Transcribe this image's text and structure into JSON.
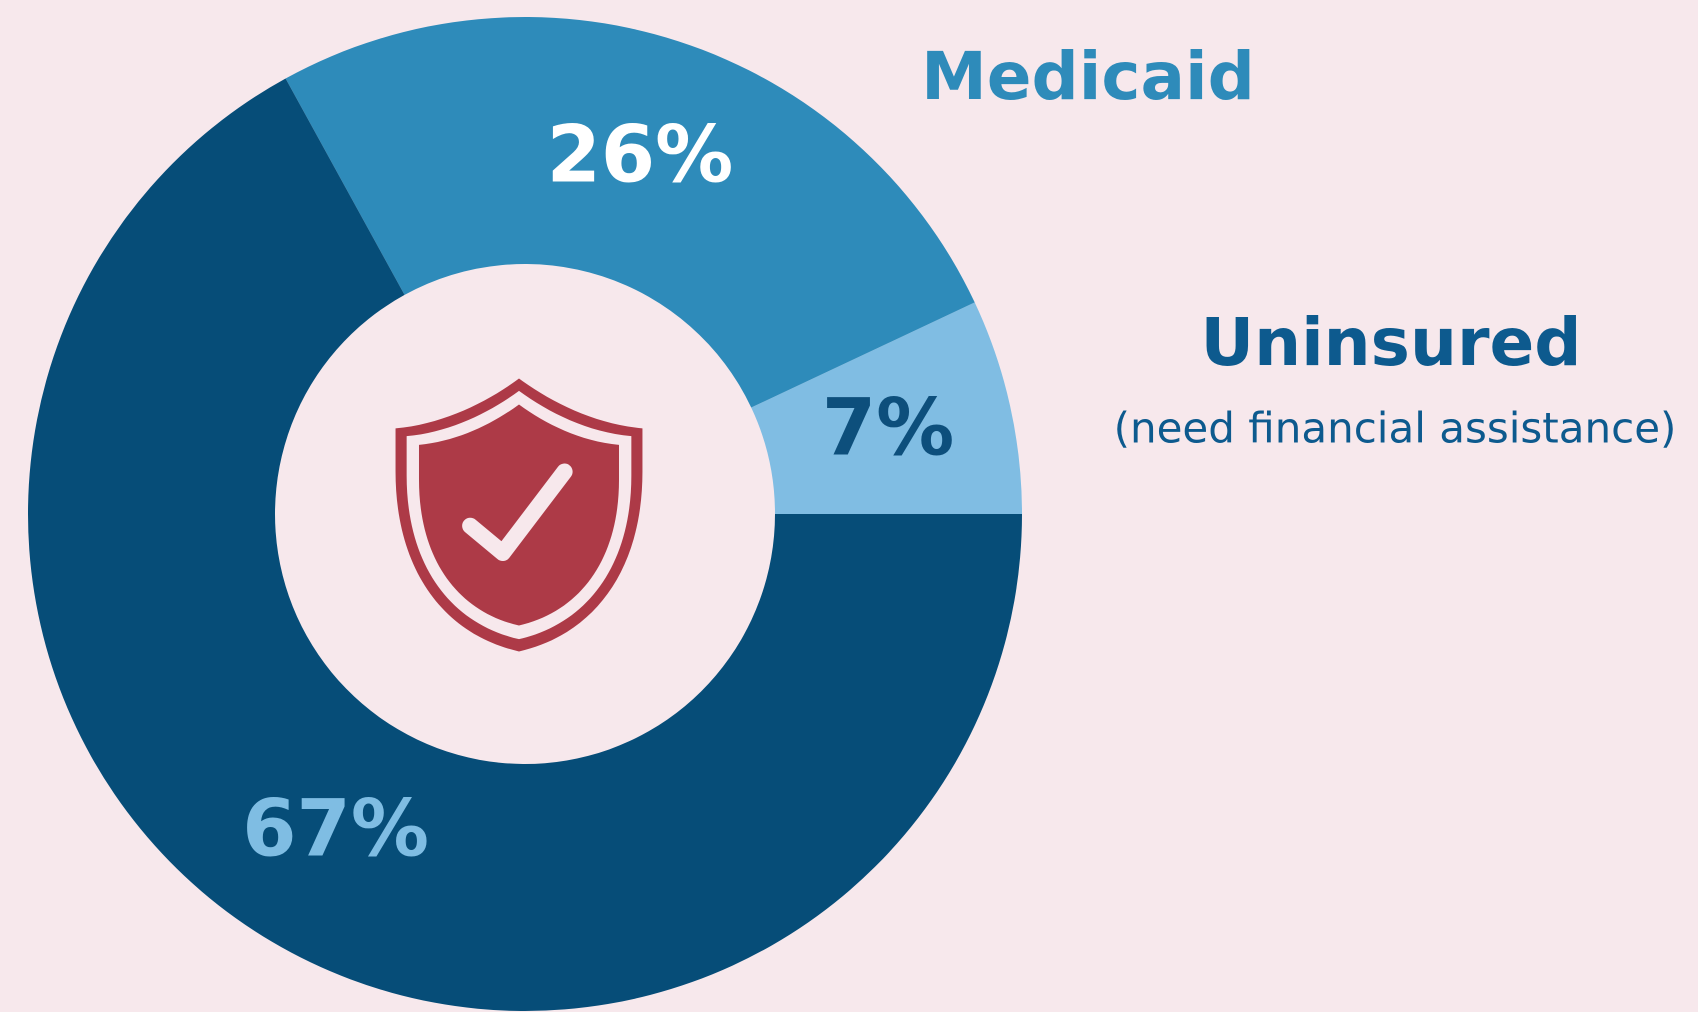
{
  "chart_data": {
    "type": "donut",
    "categories": [
      "Uninsured",
      "Medicaid",
      null
    ],
    "values": [
      7,
      26,
      67
    ],
    "value_labels": [
      "7%",
      "26%",
      "67%"
    ],
    "colors": [
      "#80bde3",
      "#2e8bba",
      "#064d78"
    ],
    "label_colors": [
      "#0d4f7c",
      "#ffffff",
      "#7fbde3"
    ],
    "legend_colors": [
      "#0d5a8e",
      "#2e8bba",
      null
    ],
    "annotation": "(need financial assistance)"
  }
}
